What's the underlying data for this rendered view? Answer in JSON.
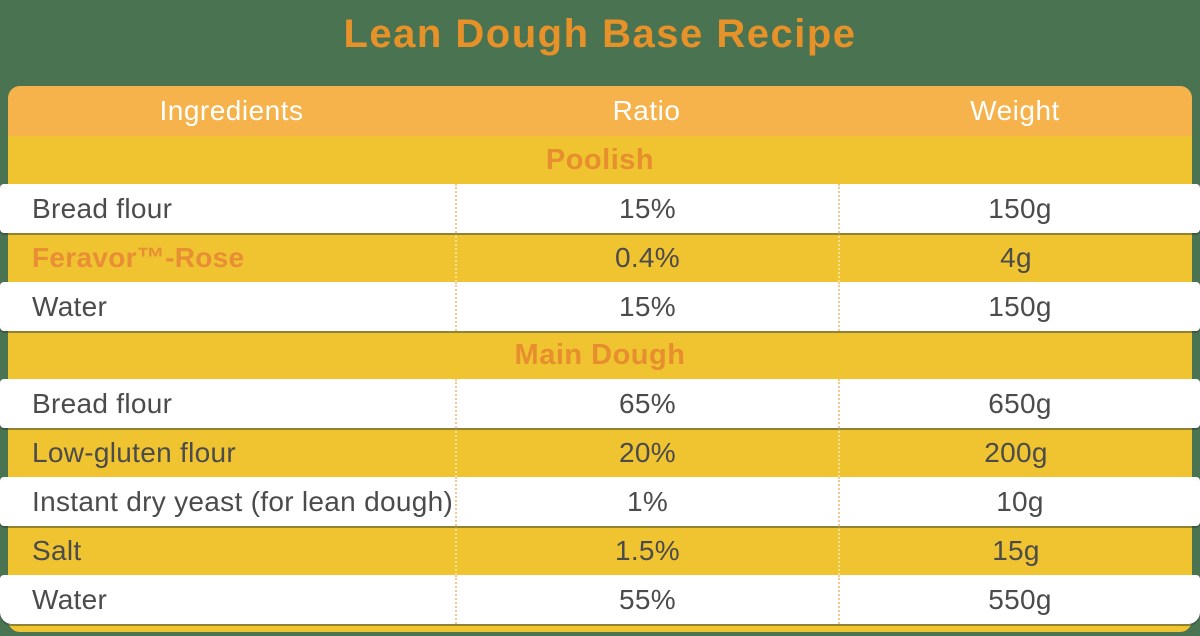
{
  "page": {
    "title": "Lean Dough Base Recipe",
    "colors": {
      "background_green": "#4A7351",
      "header_orange": "#F6B24B",
      "row_yellow": "#F0C330",
      "accent_orange_text": "#E78E2E",
      "title_orange": "#E79129",
      "body_text": "#4B4B4B",
      "header_text": "#FFFFFF",
      "row_white": "#FFFFFF"
    }
  },
  "chart_data": {
    "type": "table",
    "title": "Lean Dough Base Recipe",
    "columns": [
      "Ingredients",
      "Ratio",
      "Weight"
    ],
    "sections": [
      {
        "name": "Poolish",
        "rows": [
          [
            "Bread flour",
            "15%",
            "150g"
          ],
          [
            "Feravor™-Rose",
            "0.4%",
            "4g"
          ],
          [
            "Water",
            "15%",
            "150g"
          ]
        ]
      },
      {
        "name": "Main Dough",
        "rows": [
          [
            "Bread flour",
            "65%",
            "650g"
          ],
          [
            "Low-gluten flour",
            "20%",
            "200g"
          ],
          [
            "Instant dry yeast (for lean dough)",
            "1%",
            "10g"
          ],
          [
            "Salt",
            "1.5%",
            "15g"
          ],
          [
            "Water",
            "55%",
            "550g"
          ]
        ]
      }
    ]
  }
}
